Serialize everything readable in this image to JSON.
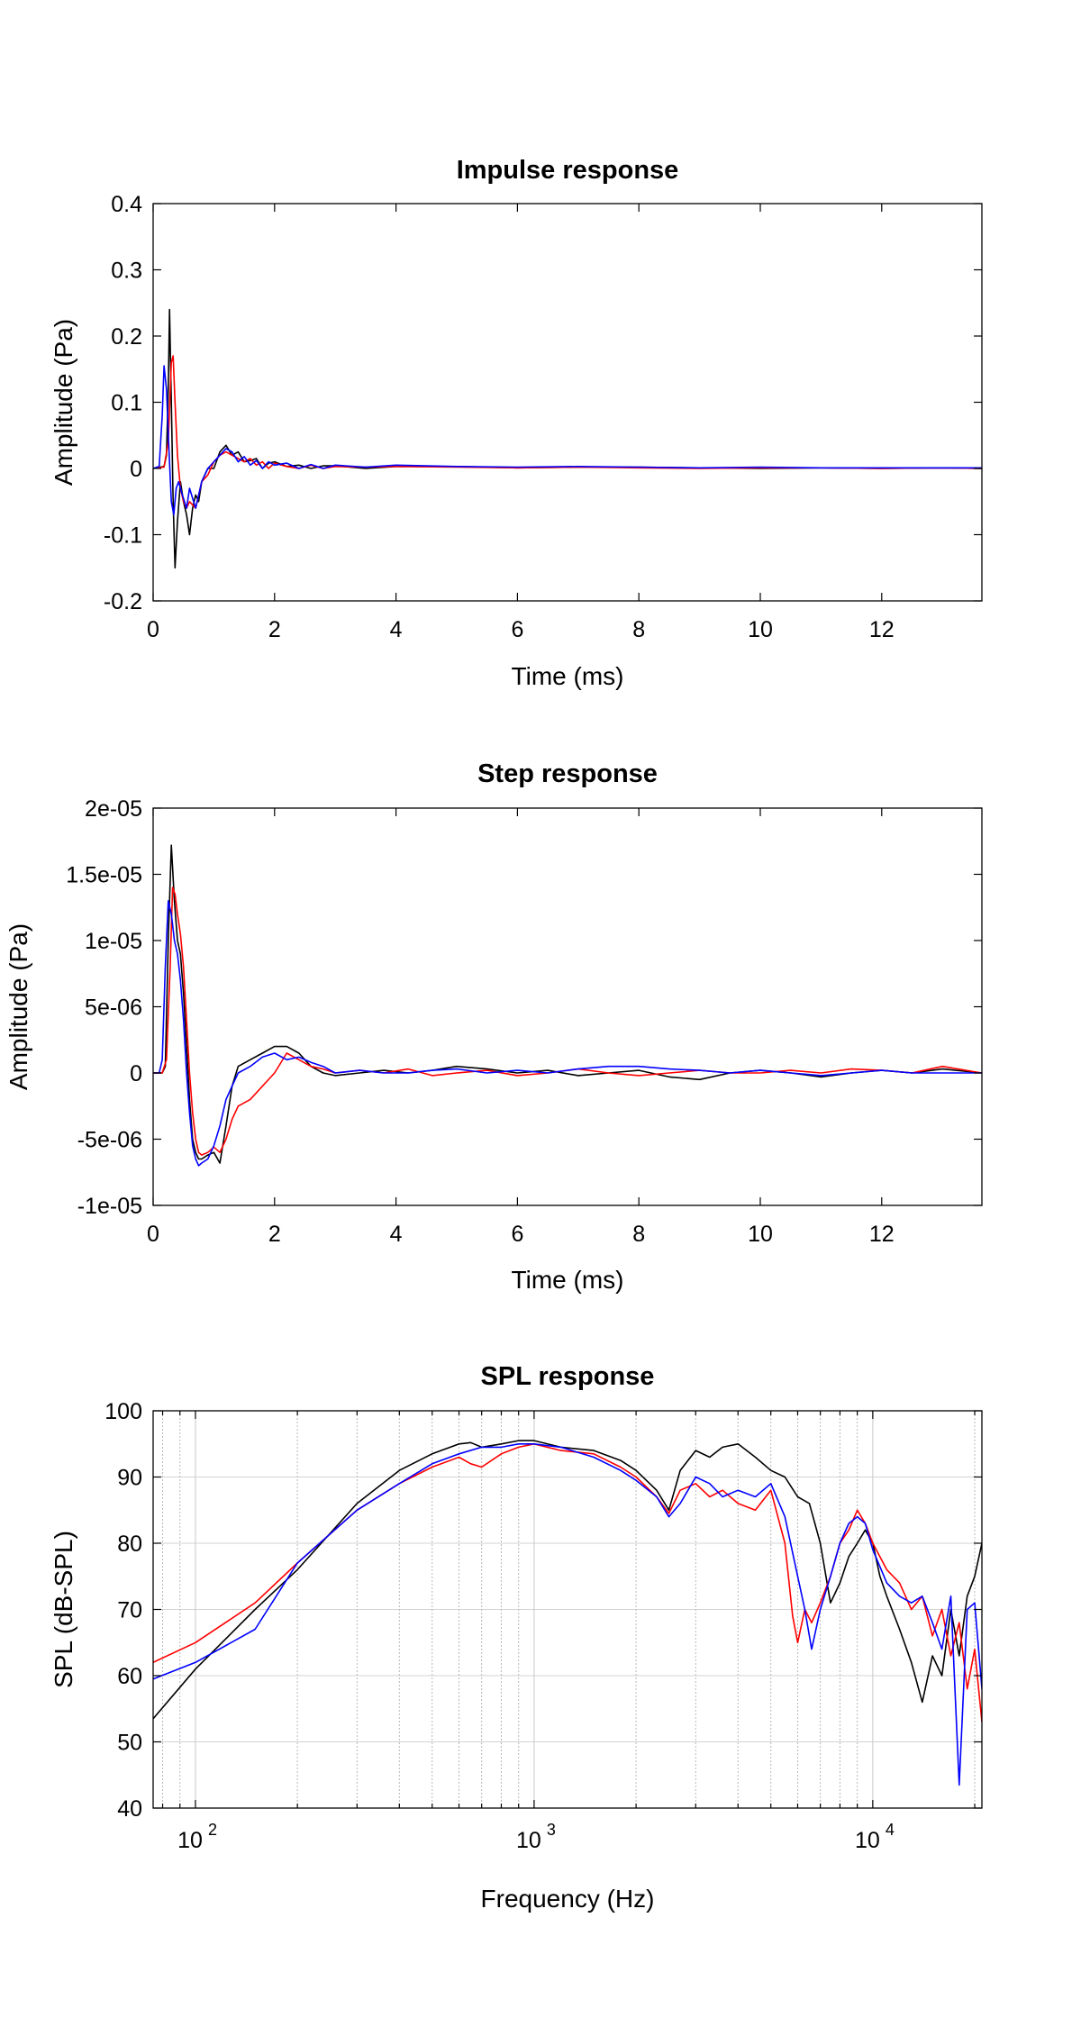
{
  "chart_data": [
    {
      "type": "line",
      "title": "Impulse response",
      "xlabel": "Time (ms)",
      "ylabel": "Amplitude (Pa)",
      "xlim": [
        0,
        13.65
      ],
      "ylim": [
        -0.2,
        0.4
      ],
      "x_ticks": [
        0,
        2,
        4,
        6,
        8,
        10,
        12
      ],
      "x_tick_labels": [
        "0",
        "2",
        "4",
        "6",
        "8",
        "10",
        "12"
      ],
      "y_ticks": [
        -0.2,
        -0.1,
        0,
        0.1,
        0.2,
        0.3,
        0.4
      ],
      "y_tick_labels": [
        "-0.2",
        "-0.1",
        "0",
        "0.1",
        "0.2",
        "0.3",
        "0.4"
      ],
      "grid": false,
      "series": [
        {
          "color": "#000000",
          "x": [
            0,
            0.18,
            0.22,
            0.25,
            0.27,
            0.3,
            0.33,
            0.36,
            0.4,
            0.45,
            0.5,
            0.55,
            0.6,
            0.65,
            0.7,
            0.75,
            0.8,
            0.9,
            1.0,
            1.1,
            1.2,
            1.3,
            1.4,
            1.5,
            1.6,
            1.7,
            1.8,
            1.9,
            2.0,
            2.2,
            2.4,
            2.6,
            2.8,
            3.0,
            3.5,
            4.0,
            5.0,
            6.0,
            7.0,
            8.0,
            9.0,
            10.0,
            11.0,
            12.0,
            13.0,
            13.65
          ],
          "y": [
            0,
            0.003,
            0.02,
            0.12,
            0.24,
            0.1,
            -0.05,
            -0.15,
            -0.08,
            -0.02,
            -0.05,
            -0.07,
            -0.1,
            -0.06,
            -0.04,
            -0.05,
            -0.02,
            0.0,
            0.0,
            0.025,
            0.035,
            0.02,
            0.025,
            0.01,
            0.012,
            0.015,
            0.0,
            0.008,
            0.01,
            0.003,
            0.005,
            0.0,
            0.004,
            0.004,
            0.0,
            0.003,
            0.003,
            0.001,
            0.002,
            0.002,
            0.001,
            0.0,
            0.001,
            0.0,
            0.001,
            0.0
          ]
        },
        {
          "color": "#ff0000",
          "x": [
            0,
            0.18,
            0.25,
            0.3,
            0.33,
            0.36,
            0.4,
            0.45,
            0.5,
            0.55,
            0.6,
            0.7,
            0.8,
            0.9,
            1.0,
            1.1,
            1.2,
            1.3,
            1.4,
            1.5,
            1.6,
            1.7,
            1.8,
            1.9,
            2.0,
            2.2,
            2.4,
            2.6,
            2.8,
            3.0,
            3.5,
            4.0,
            5.0,
            6.0,
            7.0,
            8.0,
            9.0,
            10.0,
            11.0,
            12.0,
            13.0,
            13.65
          ],
          "y": [
            0,
            0.002,
            0.04,
            0.16,
            0.17,
            0.1,
            0.02,
            -0.03,
            -0.05,
            -0.06,
            -0.05,
            -0.06,
            -0.02,
            -0.01,
            0.01,
            0.02,
            0.025,
            0.02,
            0.015,
            0.01,
            0.015,
            0.005,
            0.01,
            0.0,
            0.008,
            0.003,
            0.0,
            0.005,
            0.0,
            0.003,
            0.002,
            0.003,
            0.002,
            0.001,
            0.002,
            0.001,
            0.0,
            0.001,
            0.001,
            0.0,
            0.001,
            0.0
          ]
        },
        {
          "color": "#0000ff",
          "x": [
            0,
            0.1,
            0.15,
            0.18,
            0.22,
            0.26,
            0.3,
            0.34,
            0.38,
            0.42,
            0.48,
            0.55,
            0.6,
            0.7,
            0.8,
            0.9,
            1.0,
            1.1,
            1.2,
            1.3,
            1.4,
            1.5,
            1.6,
            1.7,
            1.8,
            1.9,
            2.0,
            2.2,
            2.4,
            2.6,
            2.8,
            3.0,
            3.5,
            4.0,
            5.0,
            6.0,
            7.0,
            8.0,
            9.0,
            10.0,
            11.0,
            12.0,
            13.0,
            13.65
          ],
          "y": [
            0,
            0.003,
            0.08,
            0.155,
            0.12,
            0.03,
            -0.05,
            -0.07,
            -0.03,
            -0.02,
            -0.04,
            -0.06,
            -0.03,
            -0.06,
            -0.02,
            0.0,
            0.01,
            0.02,
            0.03,
            0.025,
            0.01,
            0.018,
            0.005,
            0.012,
            0.0,
            0.01,
            0.005,
            0.008,
            0.0,
            0.006,
            0.0,
            0.005,
            0.002,
            0.005,
            0.003,
            0.002,
            0.003,
            0.002,
            0.001,
            0.002,
            0.001,
            0.001,
            0.001,
            0.001
          ]
        }
      ]
    },
    {
      "type": "line",
      "title": "Step response",
      "xlabel": "Time (ms)",
      "ylabel": "Amplitude (Pa)",
      "xlim": [
        0,
        13.65
      ],
      "ylim": [
        -1e-05,
        2e-05
      ],
      "x_ticks": [
        0,
        2,
        4,
        6,
        8,
        10,
        12
      ],
      "x_tick_labels": [
        "0",
        "2",
        "4",
        "6",
        "8",
        "10",
        "12"
      ],
      "y_ticks": [
        -1e-05,
        -5e-06,
        0,
        5e-06,
        1e-05,
        1.5e-05,
        2e-05
      ],
      "y_tick_labels": [
        "-1e-05",
        "-5e-06",
        "0",
        "5e-06",
        "1e-05",
        "1.5e-05",
        "2e-05"
      ],
      "grid": false,
      "series": [
        {
          "color": "#000000",
          "x": [
            0,
            0.15,
            0.2,
            0.25,
            0.3,
            0.35,
            0.4,
            0.45,
            0.5,
            0.55,
            0.6,
            0.65,
            0.7,
            0.75,
            0.8,
            0.9,
            1.0,
            1.1,
            1.2,
            1.3,
            1.4,
            1.6,
            1.8,
            2.0,
            2.2,
            2.4,
            2.6,
            2.8,
            3.0,
            3.4,
            3.8,
            4.2,
            4.6,
            5.0,
            5.5,
            6.0,
            6.5,
            7.0,
            7.5,
            8.0,
            8.5,
            9.0,
            9.5,
            10.0,
            10.5,
            11.0,
            11.5,
            12.0,
            12.5,
            13.0,
            13.65
          ],
          "y": [
            0,
            0,
            5e-07,
            1e-05,
            1.72e-05,
            1.3e-05,
            1e-05,
            9e-06,
            6e-06,
            2e-06,
            -2e-06,
            -5e-06,
            -6e-06,
            -6.5e-06,
            -6.5e-06,
            -6.2e-06,
            -6e-06,
            -6.8e-06,
            -4e-06,
            -1e-06,
            5e-07,
            1e-06,
            1.5e-06,
            2e-06,
            2e-06,
            1.5e-06,
            5e-07,
            0,
            -2e-07,
            0,
            2e-07,
            0,
            2e-07,
            5e-07,
            3e-07,
            0,
            2e-07,
            -2e-07,
            0,
            2e-07,
            -3e-07,
            -5e-07,
            0,
            2e-07,
            0,
            -3e-07,
            0,
            2e-07,
            0,
            3e-07,
            0
          ]
        },
        {
          "color": "#ff0000",
          "x": [
            0,
            0.15,
            0.22,
            0.28,
            0.32,
            0.36,
            0.4,
            0.45,
            0.5,
            0.55,
            0.6,
            0.65,
            0.7,
            0.75,
            0.8,
            0.9,
            1.0,
            1.1,
            1.2,
            1.3,
            1.4,
            1.6,
            1.8,
            2.0,
            2.2,
            2.4,
            2.6,
            2.8,
            3.0,
            3.4,
            3.8,
            4.2,
            4.6,
            5.0,
            5.5,
            6.0,
            6.5,
            7.0,
            7.5,
            8.0,
            8.5,
            9.0,
            9.5,
            10.0,
            10.5,
            11.0,
            11.5,
            12.0,
            12.5,
            13.0,
            13.65
          ],
          "y": [
            0,
            0,
            1e-06,
            8e-06,
            1.4e-05,
            1.35e-05,
            1.2e-05,
            1.05e-05,
            8e-06,
            4e-06,
            0,
            -3e-06,
            -5e-06,
            -6e-06,
            -6.2e-06,
            -6e-06,
            -5.6e-06,
            -6e-06,
            -5e-06,
            -3.5e-06,
            -2.5e-06,
            -2e-06,
            -1e-06,
            0,
            1.5e-06,
            1e-06,
            5e-07,
            3e-07,
            0,
            2e-07,
            0,
            3e-07,
            -2e-07,
            0,
            2e-07,
            -2e-07,
            0,
            3e-07,
            0,
            -2e-07,
            0,
            2e-07,
            0,
            0,
            2e-07,
            0,
            3e-07,
            2e-07,
            0,
            5e-07,
            0
          ]
        },
        {
          "color": "#0000ff",
          "x": [
            0,
            0.1,
            0.15,
            0.2,
            0.25,
            0.3,
            0.35,
            0.4,
            0.45,
            0.5,
            0.55,
            0.6,
            0.65,
            0.7,
            0.75,
            0.8,
            0.9,
            1.0,
            1.1,
            1.2,
            1.3,
            1.4,
            1.6,
            1.8,
            2.0,
            2.2,
            2.4,
            2.6,
            2.8,
            3.0,
            3.4,
            3.8,
            4.2,
            4.6,
            5.0,
            5.5,
            6.0,
            6.5,
            7.0,
            7.5,
            8.0,
            8.5,
            9.0,
            9.5,
            10.0,
            10.5,
            11.0,
            11.5,
            12.0,
            12.5,
            13.0,
            13.65
          ],
          "y": [
            0,
            0,
            1e-06,
            8e-06,
            1.3e-05,
            1.2e-05,
            1e-05,
            9e-06,
            7e-06,
            4e-06,
            0,
            -3e-06,
            -5.5e-06,
            -6.5e-06,
            -7e-06,
            -6.8e-06,
            -6.5e-06,
            -5.5e-06,
            -4e-06,
            -2e-06,
            -1e-06,
            0,
            5e-07,
            1.2e-06,
            1.5e-06,
            1e-06,
            1.2e-06,
            8e-07,
            5e-07,
            0,
            2e-07,
            0,
            0,
            2e-07,
            3e-07,
            0,
            2e-07,
            0,
            3e-07,
            5e-07,
            5e-07,
            3e-07,
            2e-07,
            0,
            2e-07,
            0,
            -2e-07,
            0,
            2e-07,
            0,
            0,
            0
          ]
        }
      ]
    },
    {
      "type": "line",
      "title": "SPL response",
      "xlabel": "Frequency (Hz)",
      "ylabel": "SPL (dB-SPL)",
      "x_scale": "log",
      "xlim": [
        75,
        21000
      ],
      "ylim": [
        40,
        100
      ],
      "x_ticks": [
        100,
        1000,
        10000
      ],
      "x_tick_labels": [
        {
          "base": "10",
          "exp": "2"
        },
        {
          "base": "10",
          "exp": "3"
        },
        {
          "base": "10",
          "exp": "4"
        }
      ],
      "y_ticks": [
        40,
        50,
        60,
        70,
        80,
        90,
        100
      ],
      "y_tick_labels": [
        "40",
        "50",
        "60",
        "70",
        "80",
        "90",
        "100"
      ],
      "grid": true,
      "series": [
        {
          "color": "#000000",
          "x": [
            75,
            100,
            150,
            200,
            300,
            400,
            500,
            600,
            650,
            700,
            800,
            900,
            1000,
            1200,
            1500,
            1800,
            2000,
            2300,
            2500,
            2700,
            3000,
            3300,
            3600,
            4000,
            4500,
            5000,
            5500,
            6000,
            6500,
            7000,
            7500,
            8000,
            8500,
            9000,
            9500,
            10000,
            10500,
            11000,
            12000,
            13000,
            14000,
            15000,
            16000,
            17000,
            18000,
            19000,
            20000,
            21000
          ],
          "y": [
            53.5,
            61,
            70,
            76,
            86,
            91,
            93.5,
            95,
            95.2,
            94.5,
            95,
            95.5,
            95.5,
            94.5,
            94,
            92.5,
            91,
            88,
            85,
            91,
            94,
            93,
            94.5,
            95,
            93,
            91,
            90,
            87,
            86,
            80,
            71,
            74,
            78,
            80,
            82,
            80,
            75,
            72,
            67,
            62,
            56,
            63,
            60,
            70,
            63,
            72,
            75,
            80
          ]
        },
        {
          "color": "#ff0000",
          "x": [
            75,
            100,
            150,
            200,
            300,
            400,
            500,
            600,
            650,
            700,
            800,
            900,
            1000,
            1200,
            1500,
            1800,
            2000,
            2300,
            2500,
            2700,
            3000,
            3300,
            3600,
            4000,
            4500,
            5000,
            5500,
            5800,
            6000,
            6300,
            6600,
            7000,
            7500,
            8000,
            8500,
            9000,
            9500,
            10000,
            11000,
            12000,
            13000,
            14000,
            15000,
            16000,
            17000,
            18000,
            19000,
            20000,
            21000
          ],
          "y": [
            62,
            65,
            71,
            77,
            85,
            89,
            91.5,
            93,
            92,
            91.5,
            93.5,
            94.5,
            95,
            94,
            93.5,
            91.5,
            90,
            87,
            84.5,
            88,
            89,
            87,
            88,
            86,
            85,
            88,
            80,
            69,
            65,
            70,
            68,
            71,
            75,
            80,
            82,
            85,
            83,
            80,
            76,
            74,
            70,
            72,
            66,
            70,
            63,
            68,
            58,
            64,
            53
          ]
        },
        {
          "color": "#0000ff",
          "x": [
            75,
            100,
            150,
            200,
            300,
            400,
            500,
            600,
            700,
            800,
            900,
            1000,
            1200,
            1500,
            1800,
            2000,
            2300,
            2500,
            2700,
            3000,
            3300,
            3600,
            4000,
            4500,
            5000,
            5500,
            6000,
            6300,
            6600,
            7000,
            7500,
            8000,
            8500,
            9000,
            9500,
            10000,
            11000,
            12000,
            13000,
            14000,
            15000,
            16000,
            17000,
            18000,
            19000,
            20000,
            21000
          ],
          "y": [
            59.5,
            62,
            67,
            77,
            85,
            89,
            92,
            93.5,
            94.5,
            94.5,
            95,
            95,
            94.5,
            93,
            91,
            89.5,
            87,
            84,
            86,
            90,
            89,
            87,
            88,
            87,
            89,
            84,
            75,
            70,
            64,
            70,
            75,
            80,
            83,
            84,
            83,
            79,
            74,
            72,
            71,
            72,
            68,
            64,
            72,
            43.5,
            70,
            71,
            58
          ]
        }
      ]
    }
  ]
}
